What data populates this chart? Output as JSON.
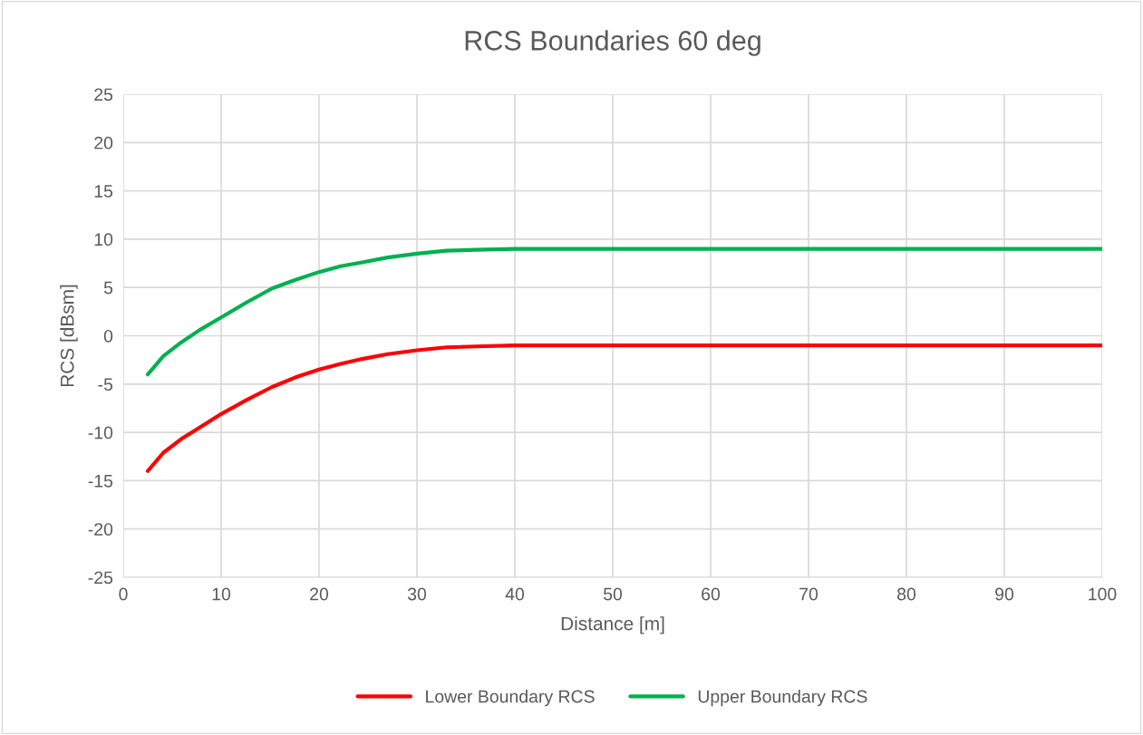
{
  "chart_data": {
    "type": "line",
    "title": "RCS Boundaries 60 deg",
    "xlabel": "Distance [m]",
    "ylabel": "RCS [dBsm]",
    "xlim": [
      0,
      100
    ],
    "xticks": [
      0,
      10,
      20,
      30,
      40,
      50,
      60,
      70,
      80,
      90,
      100
    ],
    "ylim": [
      -25,
      25
    ],
    "yticks": [
      -25,
      -20,
      -15,
      -10,
      -5,
      0,
      5,
      10,
      15,
      20,
      25
    ],
    "grid": true,
    "legend": "bottom",
    "marker": "none",
    "line_style": "solid",
    "series": [
      {
        "name": "Lower Boundary RCS",
        "color": "#ff0000",
        "x": [
          2.5,
          4.1,
          5.9,
          7.8,
          10,
          12.5,
          15.2,
          17.6,
          20,
          22.2,
          24.4,
          27,
          30,
          33,
          36,
          40,
          45,
          50,
          60,
          70,
          80,
          90,
          100
        ],
        "values": [
          -14,
          -12.1,
          -10.7,
          -9.5,
          -8.1,
          -6.7,
          -5.3,
          -4.3,
          -3.5,
          -2.9,
          -2.4,
          -1.9,
          -1.5,
          -1.2,
          -1.1,
          -1.0,
          -1.0,
          -1.0,
          -1.0,
          -1.0,
          -1.0,
          -1.0,
          -1.0
        ]
      },
      {
        "name": "Upper Boundary RCS",
        "color": "#00b050",
        "x": [
          2.5,
          4.1,
          5.9,
          7.8,
          10,
          12.5,
          15.2,
          17.6,
          20,
          22.2,
          24.4,
          27,
          30,
          33,
          36,
          40,
          45,
          50,
          60,
          70,
          80,
          90,
          100
        ],
        "values": [
          -4,
          -2.1,
          -0.7,
          0.6,
          1.9,
          3.4,
          4.9,
          5.8,
          6.6,
          7.2,
          7.6,
          8.1,
          8.5,
          8.8,
          8.9,
          9.0,
          9.0,
          9.0,
          9.0,
          9.0,
          9.0,
          9.0,
          9.0
        ]
      }
    ]
  }
}
